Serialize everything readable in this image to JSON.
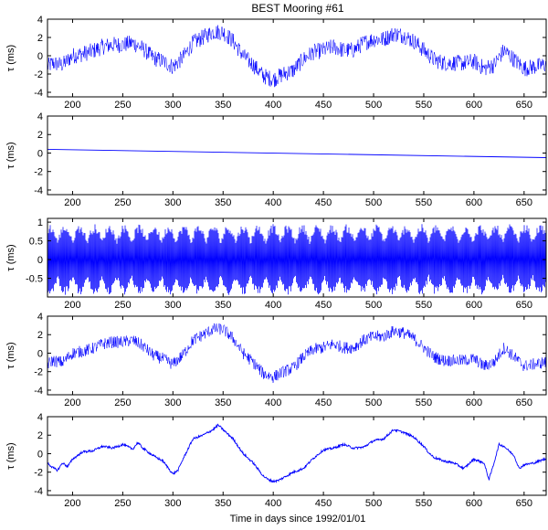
{
  "figure": {
    "title": "BEST Mooring #61",
    "xlabel": "Time in days since 1992/01/01",
    "line_color": "#0000ff"
  },
  "chart_data": [
    {
      "type": "line",
      "ylabel": "τ (ms)",
      "xlim": [
        175,
        672
      ],
      "ylim": [
        -4.5,
        4
      ],
      "xticks": [
        200,
        250,
        300,
        350,
        400,
        450,
        500,
        550,
        600,
        650
      ],
      "yticks": [
        -4,
        -2,
        0,
        2,
        4
      ],
      "ytick_labels": [
        "-4",
        "-2",
        "0",
        "2",
        "4"
      ],
      "noise": 0.9,
      "series": [
        {
          "x": [
            175,
            180,
            190,
            200,
            210,
            220,
            230,
            240,
            250,
            260,
            270,
            280,
            290,
            300,
            310,
            320,
            330,
            340,
            350,
            360,
            370,
            380,
            390,
            400,
            410,
            420,
            430,
            440,
            450,
            460,
            470,
            480,
            490,
            500,
            510,
            520,
            530,
            540,
            550,
            560,
            570,
            580,
            590,
            600,
            610,
            620,
            630,
            640,
            650,
            660,
            670
          ],
          "y": [
            -1.2,
            -0.8,
            -1.0,
            0.0,
            0.2,
            0.5,
            1.0,
            1.2,
            1.2,
            1.4,
            0.8,
            -0.2,
            -0.6,
            -1.2,
            -0.2,
            1.4,
            2.0,
            2.6,
            2.6,
            1.6,
            0.0,
            -1.0,
            -2.2,
            -2.6,
            -2.0,
            -1.6,
            -0.4,
            0.4,
            0.6,
            1.0,
            0.6,
            0.6,
            1.4,
            1.8,
            1.8,
            2.4,
            2.2,
            1.6,
            0.6,
            -0.4,
            -0.8,
            -0.8,
            -0.8,
            -0.6,
            -1.4,
            -1.0,
            0.6,
            -0.4,
            -1.4,
            -1.2,
            -1.0
          ]
        }
      ]
    },
    {
      "type": "line",
      "ylabel": "τ (ms)",
      "xlim": [
        175,
        672
      ],
      "ylim": [
        -4.5,
        4
      ],
      "xticks": [
        200,
        250,
        300,
        350,
        400,
        450,
        500,
        550,
        600,
        650
      ],
      "yticks": [
        -4,
        -2,
        0,
        2,
        4
      ],
      "ytick_labels": [
        "-4",
        "-2",
        "0",
        "2",
        "4"
      ],
      "noise": 0,
      "series": [
        {
          "x": [
            175,
            672
          ],
          "y": [
            0.4,
            -0.5
          ]
        }
      ]
    },
    {
      "type": "line",
      "ylabel": "τ (ms)",
      "xlim": [
        175,
        672
      ],
      "ylim": [
        -1,
        1.1
      ],
      "xticks": [
        200,
        250,
        300,
        350,
        400,
        450,
        500,
        550,
        600,
        650
      ],
      "yticks": [
        -0.5,
        0,
        0.5,
        1
      ],
      "ytick_labels": [
        "-0.5",
        "0",
        "0.5",
        "1"
      ],
      "oscillation": {
        "envelope_max": 0.95,
        "spring_neap_period_days": 14.8
      },
      "series": [
        {
          "x": [
            175,
            672
          ],
          "y": [
            0,
            0
          ]
        }
      ]
    },
    {
      "type": "line",
      "ylabel": "τ (ms)",
      "xlim": [
        175,
        672
      ],
      "ylim": [
        -4.5,
        4
      ],
      "xticks": [
        200,
        250,
        300,
        350,
        400,
        450,
        500,
        550,
        600,
        650
      ],
      "yticks": [
        -4,
        -2,
        0,
        2,
        4
      ],
      "ytick_labels": [
        "-4",
        "-2",
        "0",
        "2",
        "4"
      ],
      "noise": 0.65,
      "series": [
        {
          "x": [
            175,
            180,
            190,
            200,
            210,
            220,
            230,
            240,
            250,
            260,
            270,
            280,
            290,
            300,
            310,
            320,
            330,
            340,
            350,
            360,
            370,
            380,
            390,
            400,
            410,
            420,
            430,
            440,
            450,
            460,
            470,
            480,
            490,
            500,
            510,
            520,
            530,
            540,
            550,
            560,
            570,
            580,
            590,
            600,
            610,
            620,
            630,
            640,
            650,
            660,
            670
          ],
          "y": [
            -1.2,
            -0.8,
            -1.0,
            0.0,
            0.2,
            0.5,
            1.0,
            1.2,
            1.2,
            1.4,
            0.8,
            -0.2,
            -0.6,
            -1.2,
            -0.2,
            1.4,
            2.0,
            2.6,
            2.6,
            1.6,
            0.0,
            -1.0,
            -2.2,
            -2.6,
            -2.0,
            -1.6,
            -0.4,
            0.4,
            0.6,
            1.0,
            0.6,
            0.6,
            1.4,
            1.8,
            1.8,
            2.4,
            2.2,
            1.6,
            0.6,
            -0.4,
            -0.8,
            -0.8,
            -0.8,
            -0.6,
            -1.4,
            -1.0,
            0.6,
            -0.4,
            -1.4,
            -1.2,
            -1.0
          ]
        }
      ]
    },
    {
      "type": "line",
      "ylabel": "τ (ms)",
      "xlim": [
        175,
        672
      ],
      "ylim": [
        -4.5,
        4
      ],
      "xticks": [
        200,
        250,
        300,
        350,
        400,
        450,
        500,
        550,
        600,
        650
      ],
      "yticks": [
        -4,
        -2,
        0,
        2,
        4
      ],
      "ytick_labels": [
        "-4",
        "-2",
        "0",
        "2",
        "4"
      ],
      "noise": 0.12,
      "series": [
        {
          "x": [
            175,
            180,
            185,
            190,
            195,
            200,
            210,
            220,
            230,
            240,
            250,
            260,
            265,
            270,
            280,
            290,
            300,
            305,
            310,
            320,
            330,
            340,
            345,
            350,
            360,
            370,
            380,
            390,
            395,
            400,
            405,
            410,
            420,
            430,
            440,
            450,
            460,
            470,
            480,
            490,
            500,
            510,
            520,
            530,
            540,
            550,
            555,
            560,
            570,
            580,
            590,
            600,
            610,
            615,
            620,
            625,
            630,
            640,
            645,
            650,
            660,
            670
          ],
          "y": [
            -1.0,
            -1.5,
            -1.8,
            -1.0,
            -1.4,
            -0.6,
            0.2,
            0.3,
            0.8,
            0.6,
            1.0,
            0.5,
            1.2,
            0.6,
            -0.2,
            -0.8,
            -2.2,
            -1.8,
            -0.6,
            1.6,
            2.0,
            2.6,
            3.1,
            2.6,
            1.6,
            0.0,
            -1.0,
            -2.4,
            -2.8,
            -3.0,
            -2.9,
            -2.6,
            -2.0,
            -1.6,
            -0.5,
            0.4,
            0.6,
            1.0,
            0.6,
            0.7,
            1.4,
            1.6,
            2.6,
            2.3,
            1.8,
            0.8,
            0.1,
            -0.4,
            -0.8,
            -1.0,
            -1.6,
            -0.6,
            -1.0,
            -2.8,
            -1.0,
            1.0,
            0.8,
            -0.2,
            -1.6,
            -1.2,
            -1.0,
            -0.6
          ]
        }
      ]
    }
  ]
}
